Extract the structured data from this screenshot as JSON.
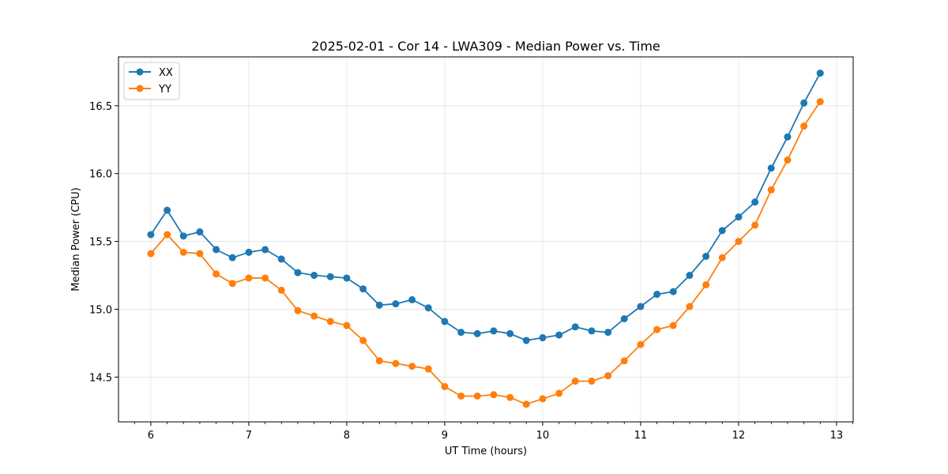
{
  "chart_data": {
    "type": "line",
    "title": "2025-02-01 - Cor 14 - LWA309 - Median Power vs. Time",
    "xlabel": "UT Time (hours)",
    "ylabel": "Median Power (CPU)",
    "xlim": [
      5.67,
      13.17
    ],
    "ylim": [
      14.17,
      16.86
    ],
    "xticks": [
      6,
      7,
      8,
      9,
      10,
      11,
      12,
      13
    ],
    "yticks": [
      14.5,
      15.0,
      15.5,
      16.0,
      16.5
    ],
    "grid": true,
    "legend_position": "top-left",
    "x": [
      6.0,
      6.167,
      6.333,
      6.5,
      6.667,
      6.833,
      7.0,
      7.167,
      7.333,
      7.5,
      7.667,
      7.833,
      8.0,
      8.167,
      8.333,
      8.5,
      8.667,
      8.833,
      9.0,
      9.167,
      9.333,
      9.5,
      9.667,
      9.833,
      10.0,
      10.167,
      10.333,
      10.5,
      10.667,
      10.833,
      11.0,
      11.167,
      11.333,
      11.5,
      11.667,
      11.833,
      12.0,
      12.167,
      12.333,
      12.5,
      12.667,
      12.833
    ],
    "series": [
      {
        "name": "XX",
        "color": "#1f77b4",
        "values": [
          15.55,
          15.73,
          15.54,
          15.57,
          15.44,
          15.38,
          15.42,
          15.44,
          15.37,
          15.27,
          15.25,
          15.24,
          15.23,
          15.15,
          15.03,
          15.04,
          15.07,
          15.01,
          14.91,
          14.83,
          14.82,
          14.84,
          14.82,
          14.77,
          14.79,
          14.81,
          14.87,
          14.84,
          14.83,
          14.93,
          15.02,
          15.11,
          15.13,
          15.25,
          15.39,
          15.58,
          15.68,
          15.79,
          16.04,
          16.27,
          16.52,
          16.74
        ]
      },
      {
        "name": "YY",
        "color": "#ff7f0e",
        "values": [
          15.41,
          15.55,
          15.42,
          15.41,
          15.26,
          15.19,
          15.23,
          15.23,
          15.14,
          14.99,
          14.95,
          14.91,
          14.88,
          14.77,
          14.62,
          14.6,
          14.58,
          14.56,
          14.43,
          14.36,
          14.36,
          14.37,
          14.35,
          14.3,
          14.34,
          14.38,
          14.47,
          14.47,
          14.51,
          14.62,
          14.74,
          14.85,
          14.88,
          15.02,
          15.18,
          15.38,
          15.5,
          15.62,
          15.88,
          16.1,
          16.35,
          16.53
        ]
      }
    ]
  }
}
